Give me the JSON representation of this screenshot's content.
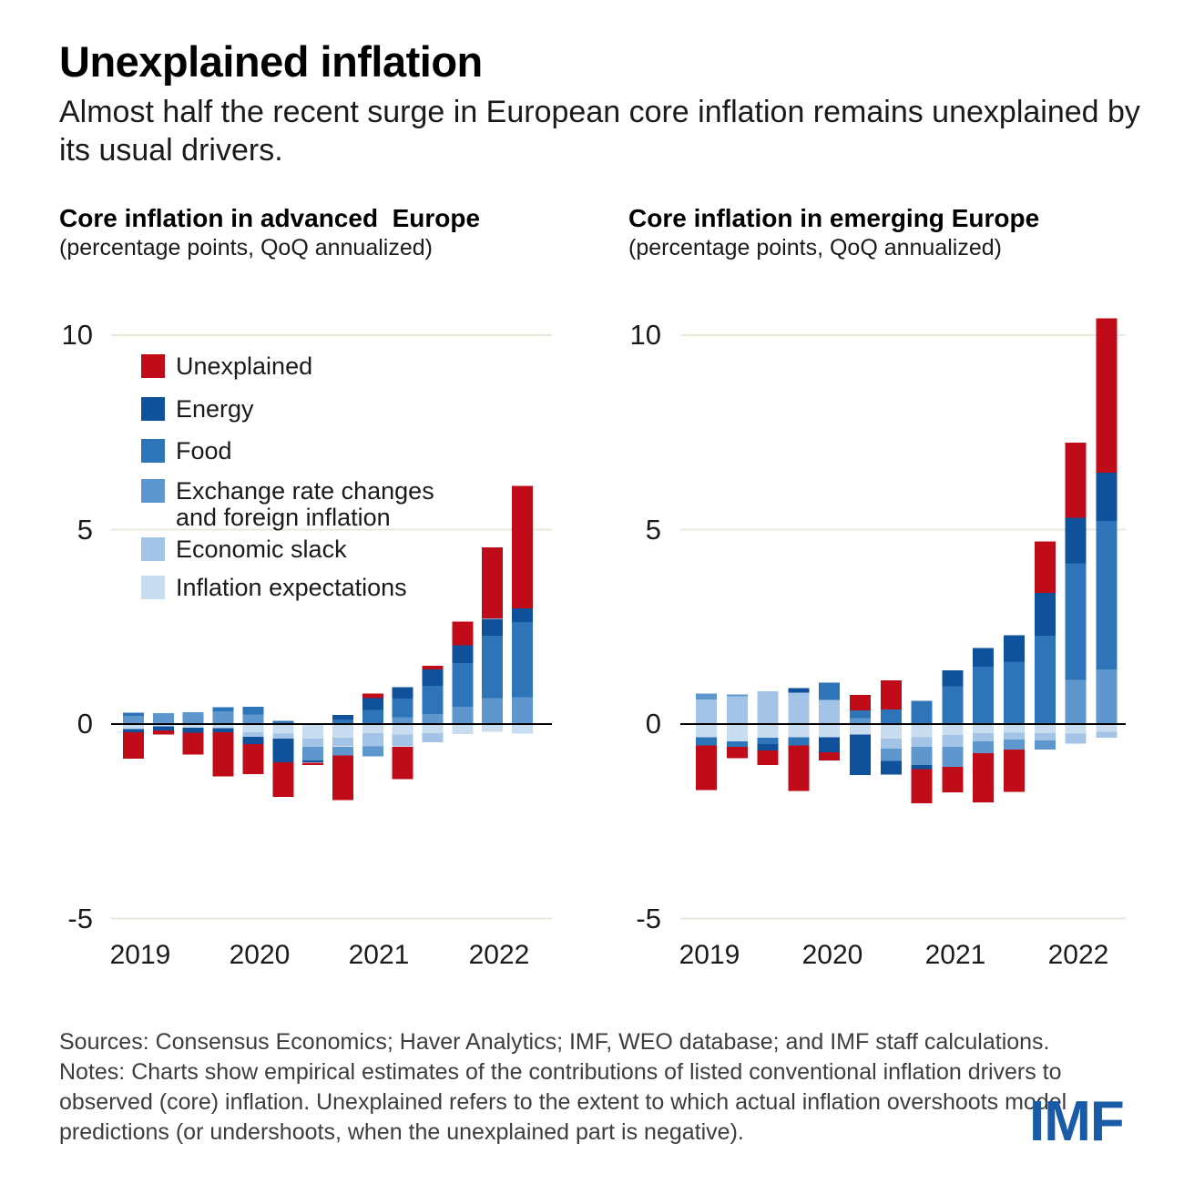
{
  "page": {
    "title": "Unexplained inflation",
    "subtitle": "Almost half the recent surge in European core inflation remains unexplained by its usual drivers."
  },
  "panels": [
    {
      "title": "Core inflation in advanced  Europe",
      "subtitle": "(percentage points, QoQ annualized)"
    },
    {
      "title": "Core inflation in emerging Europe",
      "subtitle": "(percentage points, QoQ annualized)"
    }
  ],
  "legend": {
    "items": [
      {
        "label": "Unexplained",
        "color": "#C00C18"
      },
      {
        "label": "Energy",
        "color": "#10519C"
      },
      {
        "label": "Food",
        "color": "#2E74B8"
      },
      {
        "label": "Exchange rate changes and foreign inflation",
        "color": "#5D97CE"
      },
      {
        "label": "Economic slack",
        "color": "#A3C4E6"
      },
      {
        "label": "Inflation expectations",
        "color": "#C9DDF1"
      }
    ]
  },
  "axes": {
    "y_ticks": [
      "10",
      "5",
      "0",
      "-5"
    ],
    "y_tick_values": [
      10,
      5,
      0,
      -5
    ],
    "x_years": [
      "2019",
      "2020",
      "2021",
      "2022"
    ]
  },
  "colors": {
    "gridline": "#EDE6DA",
    "zero_line": "#000000",
    "imf_blue": "#1A5BA8"
  },
  "footer": {
    "sources": "Sources: Consensus Economics; Haver Analytics; IMF, WEO database; and IMF staff calculations.",
    "notes": "Notes: Charts show empirical estimates of the contributions of listed conventional inflation drivers to observed (core) inflation. Unexplained refers to the extent to which actual inflation overshoots model predictions (or undershoots, when the unexplained part is negative).",
    "logo": "IMF"
  },
  "chart_data": [
    {
      "type": "bar",
      "stacked": true,
      "title": "Core inflation in advanced  Europe",
      "units": "percentage points, QoQ annualized",
      "ylim": [
        -5,
        10
      ],
      "grid_values": [
        10,
        5,
        -5
      ],
      "categories": [
        "2019Q1",
        "2019Q2",
        "2019Q3",
        "2019Q4",
        "2020Q1",
        "2020Q2",
        "2020Q3",
        "2020Q4",
        "2021Q1",
        "2021Q2",
        "2021Q3",
        "2021Q4",
        "2022Q1",
        "2022Q2"
      ],
      "series": [
        {
          "name": "Inflation expectations",
          "color": "#C9DDF1",
          "values": [
            -0.13,
            -0.06,
            -0.09,
            -0.1,
            -0.21,
            -0.25,
            -0.37,
            -0.35,
            -0.23,
            -0.27,
            -0.23,
            -0.26,
            -0.2,
            -0.25
          ]
        },
        {
          "name": "Economic slack",
          "color": "#A3C4E6",
          "values": [
            0,
            0,
            0,
            0,
            -0.12,
            -0.12,
            -0.21,
            -0.23,
            -0.34,
            -0.31,
            -0.24,
            0,
            0,
            0
          ]
        },
        {
          "name": "Exchange rate changes and foreign inflation",
          "color": "#5D97CE",
          "values": [
            0.21,
            0.28,
            0.3,
            0.33,
            0.25,
            0,
            -0.36,
            -0.23,
            -0.26,
            0.18,
            0.26,
            0.45,
            0.67,
            0.69
          ]
        },
        {
          "name": "Food",
          "color": "#2E74B8",
          "values": [
            0.08,
            0,
            0,
            0.1,
            0.2,
            0.08,
            0,
            0.12,
            0.36,
            0.48,
            0.72,
            1.12,
            1.6,
            1.93
          ]
        },
        {
          "name": "Energy",
          "color": "#10519C",
          "values": [
            -0.08,
            -0.1,
            -0.13,
            -0.11,
            -0.19,
            -0.61,
            -0.05,
            0.12,
            0.31,
            0.29,
            0.43,
            0.45,
            0.44,
            0.35
          ]
        },
        {
          "name": "Unexplained",
          "color": "#C00C18",
          "values": [
            -0.68,
            -0.11,
            -0.56,
            -1.13,
            -0.77,
            -0.9,
            -0.06,
            -1.15,
            0.12,
            -0.84,
            0.09,
            0.61,
            1.83,
            3.15
          ]
        }
      ]
    },
    {
      "type": "bar",
      "stacked": true,
      "title": "Core inflation in emerging Europe",
      "units": "percentage points, QoQ annualized",
      "ylim": [
        -5,
        10
      ],
      "grid_values": [
        10,
        5,
        -5
      ],
      "categories": [
        "2019Q1",
        "2019Q2",
        "2019Q3",
        "2019Q4",
        "2020Q1",
        "2020Q2",
        "2020Q3",
        "2020Q4",
        "2021Q1",
        "2021Q2",
        "2021Q3",
        "2021Q4",
        "2022Q1",
        "2022Q2"
      ],
      "series": [
        {
          "name": "Inflation expectations",
          "color": "#C9DDF1",
          "values": [
            -0.34,
            -0.45,
            -0.35,
            -0.34,
            -0.34,
            -0.27,
            -0.38,
            -0.34,
            -0.28,
            -0.24,
            -0.22,
            -0.24,
            -0.25,
            -0.2
          ]
        },
        {
          "name": "Economic slack",
          "color": "#A3C4E6",
          "values": [
            0.63,
            0.71,
            0.84,
            0.81,
            0.62,
            0,
            -0.25,
            -0.25,
            -0.3,
            -0.21,
            -0.18,
            -0.18,
            -0.25,
            -0.15
          ]
        },
        {
          "name": "Exchange rate changes and foreign inflation",
          "color": "#5D97CE",
          "values": [
            0.16,
            0.05,
            0,
            0,
            0,
            0.15,
            -0.32,
            -0.46,
            -0.52,
            -0.3,
            -0.26,
            -0.24,
            1.14,
            1.4
          ]
        },
        {
          "name": "Food",
          "color": "#2E74B8",
          "values": [
            -0.21,
            -0.14,
            -0.17,
            -0.21,
            0.45,
            0.2,
            0.38,
            0.6,
            0.97,
            1.48,
            1.6,
            2.27,
            2.99,
            3.82
          ]
        },
        {
          "name": "Energy",
          "color": "#10519C",
          "values": [
            0,
            0,
            -0.16,
            0.12,
            -0.39,
            -1.04,
            -0.35,
            -0.11,
            0.41,
            0.47,
            0.68,
            1.1,
            1.17,
            1.24
          ]
        },
        {
          "name": "Unexplained",
          "color": "#C00C18",
          "values": [
            -1.15,
            -0.29,
            -0.38,
            -1.17,
            -0.21,
            0.4,
            0.74,
            -0.88,
            -0.65,
            -1.27,
            -1.09,
            1.32,
            1.94,
            3.97
          ]
        }
      ]
    }
  ]
}
